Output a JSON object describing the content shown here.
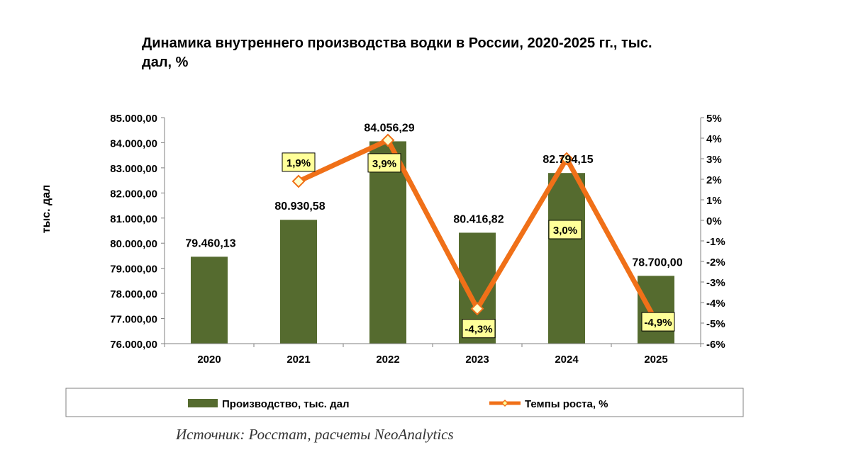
{
  "chart_data": {
    "type": "bar+line",
    "title": "Динамика внутреннего производства водки в России, 2020-2025 гг., тыс. дал, %",
    "title_lines": [
      "Динамика внутреннего производства водки в России, 2020-2025 гг., тыс.",
      "дал, %"
    ],
    "ylabel_left": "тыс. дал",
    "categories": [
      "2020",
      "2021",
      "2022",
      "2023",
      "2024",
      "2025"
    ],
    "y_left": {
      "min": 76000,
      "max": 85000,
      "ticks": [
        76000,
        77000,
        78000,
        79000,
        80000,
        81000,
        82000,
        83000,
        84000,
        85000
      ],
      "tick_labels": [
        "76.000,00",
        "77.000,00",
        "78.000,00",
        "79.000,00",
        "80.000,00",
        "81.000,00",
        "82.000,00",
        "83.000,00",
        "84.000,00",
        "85.000,00"
      ]
    },
    "y_right": {
      "min": -6,
      "max": 5,
      "ticks": [
        -6,
        -5,
        -4,
        -3,
        -2,
        -1,
        0,
        1,
        2,
        3,
        4,
        5
      ],
      "tick_labels": [
        "-6%",
        "-5%",
        "-4%",
        "-3%",
        "-2%",
        "-1%",
        "0%",
        "1%",
        "2%",
        "3%",
        "4%",
        "5%"
      ]
    },
    "series": [
      {
        "name": "Производство, тыс. дал",
        "type": "bar",
        "axis": "left",
        "color": "#556b2f",
        "values": [
          79460.13,
          80930.58,
          84056.29,
          80416.82,
          82794.15,
          78700.0
        ],
        "labels": [
          "79.460,13",
          "80.930,58",
          "84.056,29",
          "80.416,82",
          "82.794,15",
          "78.700,00"
        ]
      },
      {
        "name": "Темпы роста, %",
        "type": "line",
        "axis": "right",
        "color": "#f07018",
        "values": [
          null,
          1.9,
          3.9,
          -4.3,
          3.0,
          -4.9
        ],
        "labels": [
          "",
          "1,9%",
          "3,9%",
          "-4,3%",
          "3,0%",
          "-4,9%"
        ]
      }
    ],
    "legend_position": "bottom",
    "grid": false,
    "source": "Источник: Росстат, расчеты NeoAnalytics"
  }
}
